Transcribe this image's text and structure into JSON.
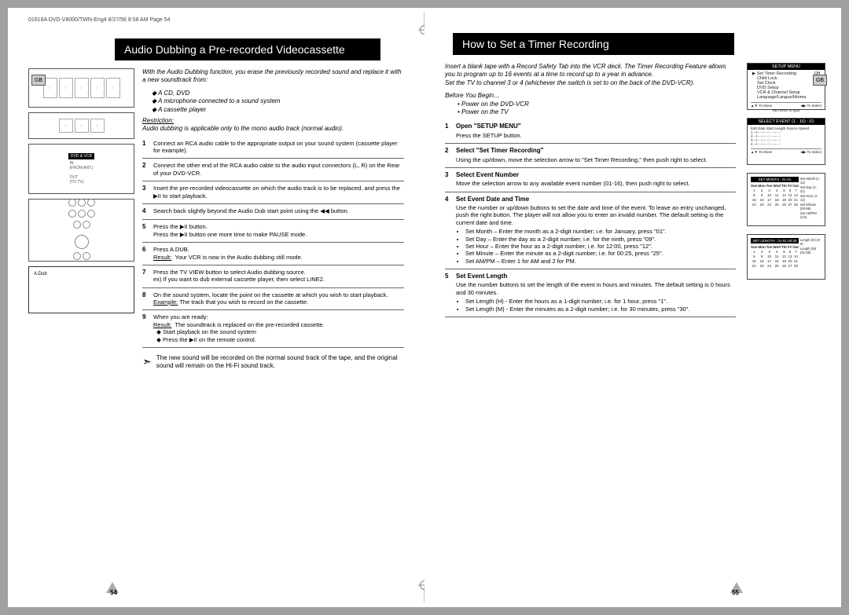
{
  "header_line": "01616A DVD-V8000/TWN-Eng4  8/27/56 8:58 AM  Page 54",
  "gb_label": "GB",
  "left_page": {
    "title": "Audio Dubbing a Pre-recorded Videocassette",
    "intro": "With the Audio Dubbing function, you erase the previously recorded sound and replace it with a new soundtrack from:",
    "sources": [
      "A CD, DVD",
      "A microphone connected to a sound system",
      "A cassette player"
    ],
    "restriction_label": "Restriction:",
    "restriction_text": "Audio dubbing is applicable only to the mono audio track (normal audio).",
    "steps": [
      {
        "num": "1",
        "body": "Connect an RCA audio cable to the appropriate output on your sound system (cassette player for example)."
      },
      {
        "num": "2",
        "body": "Connect the other end of the RCA audio cable to the audio input connectors (L, R) on the Rear of your DVD-VCR."
      },
      {
        "num": "3",
        "body": "Insert the pre-recorded videocassette on which the audio track is to be replaced, and press the ▶II to start playback."
      },
      {
        "num": "4",
        "body": "Search back slightly beyond the Audio Dub start point using the ◀◀ button."
      },
      {
        "num": "5",
        "body": "Press the ▶II button.\nPress the ▶II button one more time to make PAUSE mode."
      },
      {
        "num": "6",
        "body": "Press A.DUB.",
        "result_label": "Result:",
        "result": "Your VCR is now in the Audio dubbing still mode."
      },
      {
        "num": "7",
        "body": "Press the TV VIEW button to select Audio dubbing source.\nex) If you want to dub external cassette player, then select LINE2."
      },
      {
        "num": "8",
        "body": "On the sound system, locate the point on the cassette at which you wish to start playback.",
        "example_label": "Example:",
        "example": "The track that you wish to record on the cassette."
      },
      {
        "num": "9",
        "body": "When you are ready:",
        "subs": [
          "Start playback on the sound system",
          "Press the ▶II on the remote control."
        ],
        "result_label": "Result:",
        "result": "The soundtrack is replaced on the pre-recorded cassette."
      }
    ],
    "note": "The new sound will be recorded on the normal sound track of the tape, and the original sound will remain on the Hi-Fi sound track.",
    "page_num": "54",
    "adub_label": "A.Dub",
    "conn_label": "DVD & VCR"
  },
  "right_page": {
    "title": "How to Set a Timer Recording",
    "intro": "Insert a blank tape with a Record Safety Tab into the VCR deck. The Timer Recording Feature allows you to program up to 16 events at a time to record up to a year in advance.\nSet the TV to channel 3 or 4 (whichever the switch is set to on the back of the DVD-VCR).",
    "before_label": "Before You Begin...",
    "before_items": [
      "Power on the DVD-VCR",
      "Power on the TV"
    ],
    "steps": [
      {
        "num": "1",
        "title": "Open \"SETUP MENU\"",
        "body": "Press the SETUP button."
      },
      {
        "num": "2",
        "title": "Select \"Set Timer Recording\"",
        "body": "Using the up/down, move the selection arrow to \"Set Timer Recording,\" then push right to select."
      },
      {
        "num": "3",
        "title": "Select Event Number",
        "body": "Move the selection arrow to any available event number (01-16), then push right to select."
      },
      {
        "num": "4",
        "title": "Set Event Date and Time",
        "body": "Use the number or up/down buttons to set the date and time of the event. To leave an entry unchanged, push the right button. The player will not allow you to enter an invalid number. The default setting is the current date and time.",
        "subs": [
          "Set Month – Enter the month as a 2-digit number; i.e. for January, press \"01\".",
          "Set Day – Enter the day as a 2-digit number; i.e. for the ninth, press \"09\".",
          "Set Hour – Enter the hour as a 2-digit number; i.e. for 12:00, press \"12\".",
          "Set Minute – Enter the minute as a 2-digit number; i.e. for 00:25, press \"25\".",
          "Set AM/PM – Enter 1 for AM and 2 for PM."
        ]
      },
      {
        "num": "5",
        "title": "Set Event Length",
        "body": "Use the number buttons to set the length of the event in hours and minutes. The default setting is 0 hours and 30 minutes.",
        "subs": [
          "Set Length (H) - Enter the hours as a 1-digit number; i.e. for 1 hour, press \"1\".",
          "Set Length (M) - Enter the minutes as a 2-digit number; i.e. for 30 minutes, press \"30\"."
        ]
      }
    ],
    "page_num": "55",
    "screens": {
      "setup_menu": {
        "title": "SETUP MENU",
        "items": [
          "Set Timer Recording",
          "Child Lock",
          "Set Clock",
          "DVD Setup",
          "VCR & Channel Setup",
          "Language/Langue/Idioma"
        ],
        "off": "Off",
        "foot_left": "▲▼ To Move",
        "foot_right": "◀▶ To Select",
        "return": "RETURN To Quit"
      },
      "select_event": {
        "title": "SELECT EVENT (1 - 16) : 01",
        "cols": "Edit    Date  Start  Length  Source  Speed",
        "rows": [
          "1   --/--  --:--    -:--    ----    --",
          "2   --/--  --:--    -:--    ----    --",
          "3   --/--  --:--    -:--    ----    --",
          "4   --/--  --:--    -:--    ----    --"
        ],
        "foot_left": "▲▼ To Move",
        "foot_right": "◀▶ To Select"
      },
      "set_month": {
        "title": "SET MONTH : 01-01",
        "side": [
          "Set Month (1-12)",
          "Set Day (1-31)",
          "Set Hour (1-12)",
          "Set Minute (00-59)",
          "Set AM/PM (1/2)"
        ],
        "days": [
          "Sun",
          "Mon",
          "Tue",
          "Wed",
          "Thr",
          "Fri",
          "Sat"
        ]
      },
      "set_length": {
        "title": "SET LENGTH : 01-01  00:30",
        "side": [
          "Length (H) (0-9)",
          "Length (M) (01-59)"
        ]
      }
    }
  }
}
